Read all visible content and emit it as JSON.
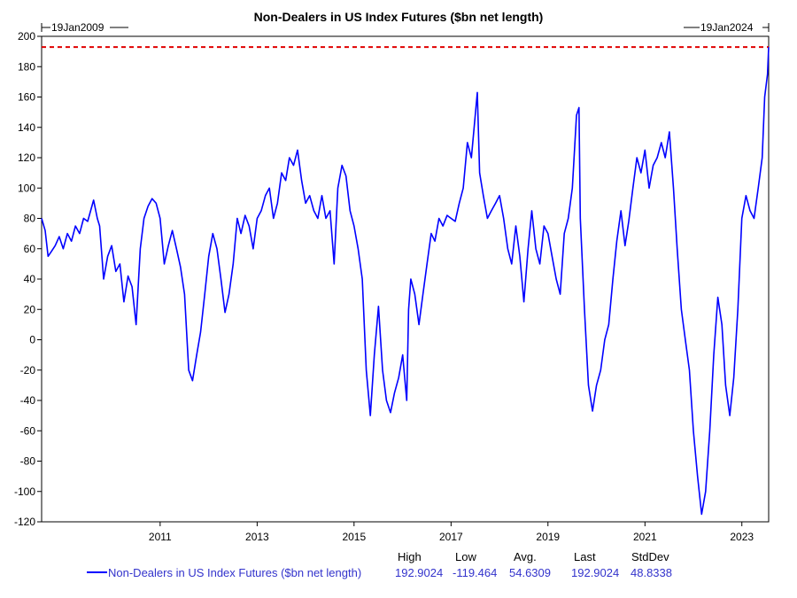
{
  "colors": {
    "series": "#0000ff",
    "highline": "#e00000",
    "legend_text": "#3333cc",
    "axis": "#000000"
  },
  "chart_data": {
    "type": "line",
    "title": "Non-Dealers in US Index Futures ($bn net length)",
    "start_marker": "19Jan2009",
    "end_marker": "19Jan2024",
    "xlabel": "",
    "ylabel": "",
    "ylim": [
      -120,
      200
    ],
    "y_ticks": [
      "200",
      "180",
      "160",
      "140",
      "120",
      "100",
      "80",
      "60",
      "40",
      "20",
      "0",
      "-20",
      "-40",
      "-60",
      "-80",
      "-100",
      "-120"
    ],
    "x_ticks": [
      "2011",
      "2013",
      "2015",
      "2017",
      "2019",
      "2021",
      "2023"
    ],
    "x_domain": [
      "2009-01-19",
      "2024-01-19"
    ],
    "reference_line": {
      "value": 192.9024,
      "style": "dashed"
    },
    "grid": false,
    "legend_position": "bottom",
    "series": [
      {
        "name": "Non-Dealers in US Index Futures ($bn net length)",
        "points": [
          [
            "2009-01-19",
            80
          ],
          [
            "2009-02-15",
            72
          ],
          [
            "2009-03-09",
            55
          ],
          [
            "2009-04-01",
            58
          ],
          [
            "2009-05-01",
            62
          ],
          [
            "2009-06-01",
            68
          ],
          [
            "2009-07-01",
            60
          ],
          [
            "2009-08-01",
            70
          ],
          [
            "2009-09-01",
            65
          ],
          [
            "2009-10-01",
            75
          ],
          [
            "2009-11-01",
            70
          ],
          [
            "2009-12-01",
            80
          ],
          [
            "2010-01-01",
            78
          ],
          [
            "2010-02-15",
            92
          ],
          [
            "2010-03-15",
            80
          ],
          [
            "2010-04-01",
            75
          ],
          [
            "2010-05-01",
            40
          ],
          [
            "2010-06-01",
            55
          ],
          [
            "2010-07-01",
            62
          ],
          [
            "2010-08-01",
            45
          ],
          [
            "2010-09-01",
            50
          ],
          [
            "2010-10-01",
            25
          ],
          [
            "2010-11-01",
            42
          ],
          [
            "2010-12-01",
            35
          ],
          [
            "2011-01-01",
            10
          ],
          [
            "2011-02-01",
            60
          ],
          [
            "2011-03-01",
            80
          ],
          [
            "2011-04-01",
            88
          ],
          [
            "2011-05-01",
            93
          ],
          [
            "2011-06-01",
            90
          ],
          [
            "2011-07-01",
            80
          ],
          [
            "2011-08-01",
            50
          ],
          [
            "2011-09-01",
            62
          ],
          [
            "2011-10-01",
            72
          ],
          [
            "2011-11-01",
            60
          ],
          [
            "2011-12-01",
            48
          ],
          [
            "2012-01-01",
            30
          ],
          [
            "2012-02-01",
            -20
          ],
          [
            "2012-03-01",
            -27
          ],
          [
            "2012-04-01",
            -10
          ],
          [
            "2012-05-01",
            5
          ],
          [
            "2012-06-01",
            30
          ],
          [
            "2012-07-01",
            55
          ],
          [
            "2012-08-01",
            70
          ],
          [
            "2012-09-01",
            60
          ],
          [
            "2012-10-01",
            40
          ],
          [
            "2012-11-01",
            18
          ],
          [
            "2012-12-01",
            30
          ],
          [
            "2013-01-01",
            50
          ],
          [
            "2013-02-01",
            80
          ],
          [
            "2013-03-01",
            70
          ],
          [
            "2013-04-01",
            82
          ],
          [
            "2013-05-01",
            75
          ],
          [
            "2013-06-01",
            60
          ],
          [
            "2013-07-01",
            80
          ],
          [
            "2013-08-01",
            85
          ],
          [
            "2013-09-01",
            95
          ],
          [
            "2013-10-01",
            100
          ],
          [
            "2013-11-01",
            80
          ],
          [
            "2013-12-01",
            90
          ],
          [
            "2014-01-01",
            110
          ],
          [
            "2014-02-01",
            105
          ],
          [
            "2014-03-01",
            120
          ],
          [
            "2014-04-01",
            115
          ],
          [
            "2014-05-01",
            125
          ],
          [
            "2014-06-01",
            105
          ],
          [
            "2014-07-01",
            90
          ],
          [
            "2014-08-01",
            95
          ],
          [
            "2014-09-01",
            85
          ],
          [
            "2014-10-01",
            80
          ],
          [
            "2014-11-01",
            95
          ],
          [
            "2014-12-01",
            80
          ],
          [
            "2015-01-01",
            85
          ],
          [
            "2015-02-01",
            50
          ],
          [
            "2015-03-01",
            100
          ],
          [
            "2015-04-01",
            115
          ],
          [
            "2015-05-01",
            108
          ],
          [
            "2015-06-01",
            85
          ],
          [
            "2015-07-01",
            75
          ],
          [
            "2015-08-01",
            60
          ],
          [
            "2015-09-01",
            40
          ],
          [
            "2015-10-01",
            -20
          ],
          [
            "2015-11-01",
            -50
          ],
          [
            "2015-12-01",
            -10
          ],
          [
            "2016-01-01",
            22
          ],
          [
            "2016-02-01",
            -20
          ],
          [
            "2016-03-01",
            -40
          ],
          [
            "2016-04-01",
            -48
          ],
          [
            "2016-05-01",
            -35
          ],
          [
            "2016-06-01",
            -25
          ],
          [
            "2016-07-01",
            -10
          ],
          [
            "2016-08-01",
            -40
          ],
          [
            "2016-08-15",
            20
          ],
          [
            "2016-09-01",
            40
          ],
          [
            "2016-10-01",
            30
          ],
          [
            "2016-11-01",
            10
          ],
          [
            "2016-12-01",
            30
          ],
          [
            "2017-01-01",
            50
          ],
          [
            "2017-02-01",
            70
          ],
          [
            "2017-03-01",
            65
          ],
          [
            "2017-04-01",
            80
          ],
          [
            "2017-05-01",
            75
          ],
          [
            "2017-06-01",
            82
          ],
          [
            "2017-07-01",
            80
          ],
          [
            "2017-08-01",
            78
          ],
          [
            "2017-09-01",
            90
          ],
          [
            "2017-10-01",
            100
          ],
          [
            "2017-11-01",
            130
          ],
          [
            "2017-12-01",
            120
          ],
          [
            "2018-01-15",
            163
          ],
          [
            "2018-02-01",
            110
          ],
          [
            "2018-03-01",
            95
          ],
          [
            "2018-04-01",
            80
          ],
          [
            "2018-05-01",
            85
          ],
          [
            "2018-06-01",
            90
          ],
          [
            "2018-07-01",
            95
          ],
          [
            "2018-08-01",
            80
          ],
          [
            "2018-09-01",
            60
          ],
          [
            "2018-10-01",
            50
          ],
          [
            "2018-11-01",
            75
          ],
          [
            "2018-12-01",
            55
          ],
          [
            "2019-01-01",
            25
          ],
          [
            "2019-02-01",
            60
          ],
          [
            "2019-03-01",
            85
          ],
          [
            "2019-04-01",
            60
          ],
          [
            "2019-05-01",
            50
          ],
          [
            "2019-06-01",
            75
          ],
          [
            "2019-07-01",
            70
          ],
          [
            "2019-08-01",
            55
          ],
          [
            "2019-09-01",
            40
          ],
          [
            "2019-10-01",
            30
          ],
          [
            "2019-11-01",
            70
          ],
          [
            "2019-12-01",
            80
          ],
          [
            "2020-01-01",
            100
          ],
          [
            "2020-02-01",
            148
          ],
          [
            "2020-02-20",
            153
          ],
          [
            "2020-03-01",
            80
          ],
          [
            "2020-04-01",
            20
          ],
          [
            "2020-05-01",
            -30
          ],
          [
            "2020-06-01",
            -47
          ],
          [
            "2020-07-01",
            -30
          ],
          [
            "2020-08-01",
            -20
          ],
          [
            "2020-09-01",
            0
          ],
          [
            "2020-10-01",
            10
          ],
          [
            "2020-11-01",
            40
          ],
          [
            "2020-12-01",
            65
          ],
          [
            "2021-01-01",
            85
          ],
          [
            "2021-02-01",
            62
          ],
          [
            "2021-03-01",
            78
          ],
          [
            "2021-04-01",
            100
          ],
          [
            "2021-05-01",
            120
          ],
          [
            "2021-06-01",
            110
          ],
          [
            "2021-07-01",
            125
          ],
          [
            "2021-08-01",
            100
          ],
          [
            "2021-09-01",
            115
          ],
          [
            "2021-10-01",
            120
          ],
          [
            "2021-11-01",
            130
          ],
          [
            "2021-12-01",
            120
          ],
          [
            "2022-01-01",
            137
          ],
          [
            "2022-02-01",
            100
          ],
          [
            "2022-03-01",
            60
          ],
          [
            "2022-04-01",
            20
          ],
          [
            "2022-05-01",
            0
          ],
          [
            "2022-06-01",
            -20
          ],
          [
            "2022-07-01",
            -60
          ],
          [
            "2022-08-01",
            -90
          ],
          [
            "2022-09-01",
            -115
          ],
          [
            "2022-10-01",
            -100
          ],
          [
            "2022-11-01",
            -60
          ],
          [
            "2022-12-01",
            -10
          ],
          [
            "2023-01-01",
            28
          ],
          [
            "2023-02-01",
            10
          ],
          [
            "2023-03-01",
            -30
          ],
          [
            "2023-04-01",
            -50
          ],
          [
            "2023-05-01",
            -25
          ],
          [
            "2023-06-01",
            20
          ],
          [
            "2023-07-01",
            80
          ],
          [
            "2023-08-01",
            95
          ],
          [
            "2023-09-01",
            85
          ],
          [
            "2023-10-01",
            80
          ],
          [
            "2023-11-01",
            100
          ],
          [
            "2023-12-01",
            120
          ],
          [
            "2023-12-20",
            160
          ],
          [
            "2024-01-10",
            175
          ],
          [
            "2024-01-19",
            192.9
          ]
        ]
      }
    ],
    "stats": {
      "headers": [
        "High",
        "Low",
        "Avg.",
        "Last",
        "StdDev"
      ],
      "values": [
        "192.9024",
        "-119.464",
        "54.6309",
        "192.9024",
        "48.8338"
      ]
    }
  }
}
